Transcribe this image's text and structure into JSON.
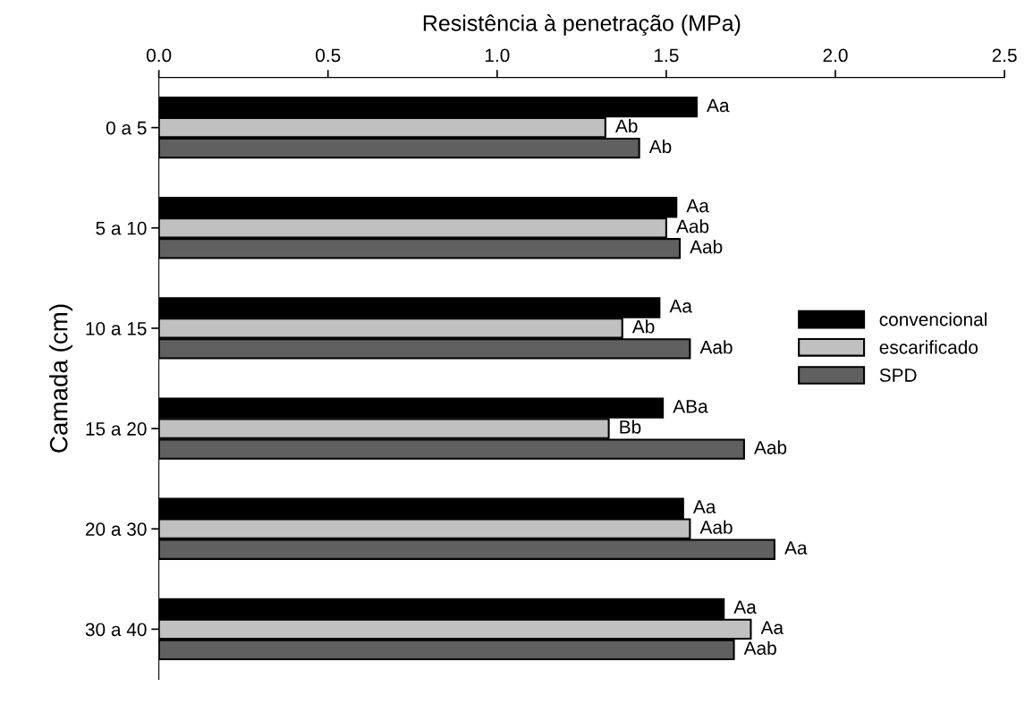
{
  "chart_data": {
    "type": "bar",
    "orientation": "horizontal",
    "xlabel": "Resistência à penetração (MPa)",
    "ylabel": "Camada (cm)",
    "categories": [
      "0 a 5",
      "5 a 10",
      "10 a 15",
      "15 a 20",
      "20 a 30",
      "30 a 40"
    ],
    "xlim": [
      0,
      2.5
    ],
    "xticks": [
      {
        "value": 0,
        "label": "0.0"
      },
      {
        "value": 0.5,
        "label": "0.5"
      },
      {
        "value": 1,
        "label": "1.0"
      },
      {
        "value": 1.5,
        "label": "1.5"
      },
      {
        "value": 2,
        "label": "2.0"
      },
      {
        "value": 2.5,
        "label": "2.5"
      }
    ],
    "grid": false,
    "legend": "right",
    "series": [
      {
        "name": "convencional",
        "color": "#000000",
        "values": [
          1.59,
          1.53,
          1.48,
          1.49,
          1.55,
          1.67
        ],
        "value_labels": [
          "Aa",
          "Aa",
          "Aa",
          "ABa",
          "Aa",
          "Aa"
        ]
      },
      {
        "name": "escarificado",
        "color": "#c0c0c0",
        "values": [
          1.32,
          1.5,
          1.37,
          1.33,
          1.57,
          1.75
        ],
        "value_labels": [
          "Ab",
          "Aab",
          "Ab",
          "Bb",
          "Aab",
          "Aa"
        ]
      },
      {
        "name": "SPD",
        "color": "#606060",
        "values": [
          1.42,
          1.54,
          1.57,
          1.73,
          1.82,
          1.7
        ],
        "value_labels": [
          "Ab",
          "Aab",
          "Aab",
          "Aab",
          "Aa",
          "Aab"
        ]
      }
    ]
  }
}
